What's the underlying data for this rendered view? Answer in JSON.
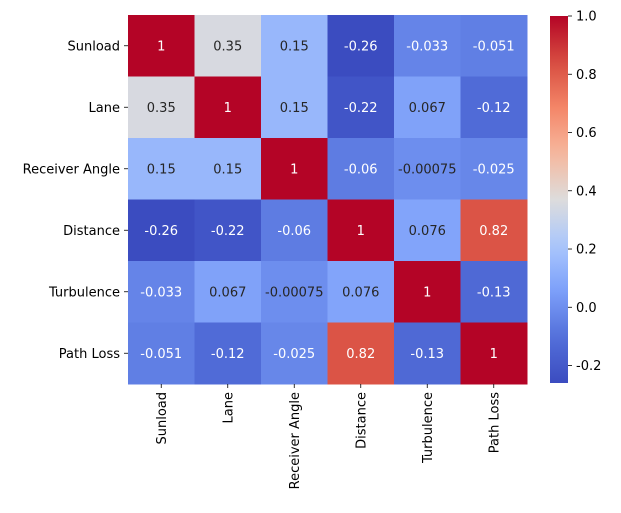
{
  "chart_data": {
    "type": "heatmap",
    "title": "",
    "xlabel": "",
    "ylabel": "",
    "rows": [
      "Sunload",
      "Lane",
      "Receiver  Angle",
      "Distance",
      "Turbulence",
      "Path Loss"
    ],
    "columns": [
      "Sunload",
      "Lane",
      "Receiver  Angle",
      "Distance",
      "Turbulence",
      "Path Loss"
    ],
    "values": [
      [
        1,
        0.35,
        0.15,
        -0.26,
        -0.033,
        -0.051
      ],
      [
        0.35,
        1,
        0.15,
        -0.22,
        0.067,
        -0.12
      ],
      [
        0.15,
        0.15,
        1,
        -0.06,
        -0.00075,
        -0.025
      ],
      [
        -0.26,
        -0.22,
        -0.06,
        1,
        0.076,
        0.82
      ],
      [
        -0.033,
        0.067,
        -0.00075,
        0.076,
        1,
        -0.13
      ],
      [
        -0.051,
        -0.12,
        -0.025,
        0.82,
        -0.13,
        1
      ]
    ],
    "annotations": [
      [
        "1",
        "0.35",
        "0.15",
        "-0.26",
        "-0.033",
        "-0.051"
      ],
      [
        "0.35",
        "1",
        "0.15",
        "-0.22",
        "0.067",
        "-0.12"
      ],
      [
        "0.15",
        "0.15",
        "1",
        "-0.06",
        "-0.00075",
        "-0.025"
      ],
      [
        "-0.26",
        "-0.22",
        "-0.06",
        "1",
        "0.076",
        "0.82"
      ],
      [
        "-0.033",
        "0.067",
        "-0.00075",
        "0.076",
        "1",
        "-0.13"
      ],
      [
        "-0.051",
        "-0.12",
        "-0.025",
        "0.82",
        "-0.13",
        "1"
      ]
    ],
    "colormap": "coolwarm",
    "vmin": -0.26,
    "vmax": 1.0,
    "colorbar_ticks": [
      "1.0",
      "0.8",
      "0.6",
      "0.4",
      "0.2",
      "0.0",
      "-0.2"
    ],
    "colorbar_tick_values": [
      1.0,
      0.8,
      0.6,
      0.4,
      0.2,
      0.0,
      -0.2
    ],
    "grid": false
  }
}
